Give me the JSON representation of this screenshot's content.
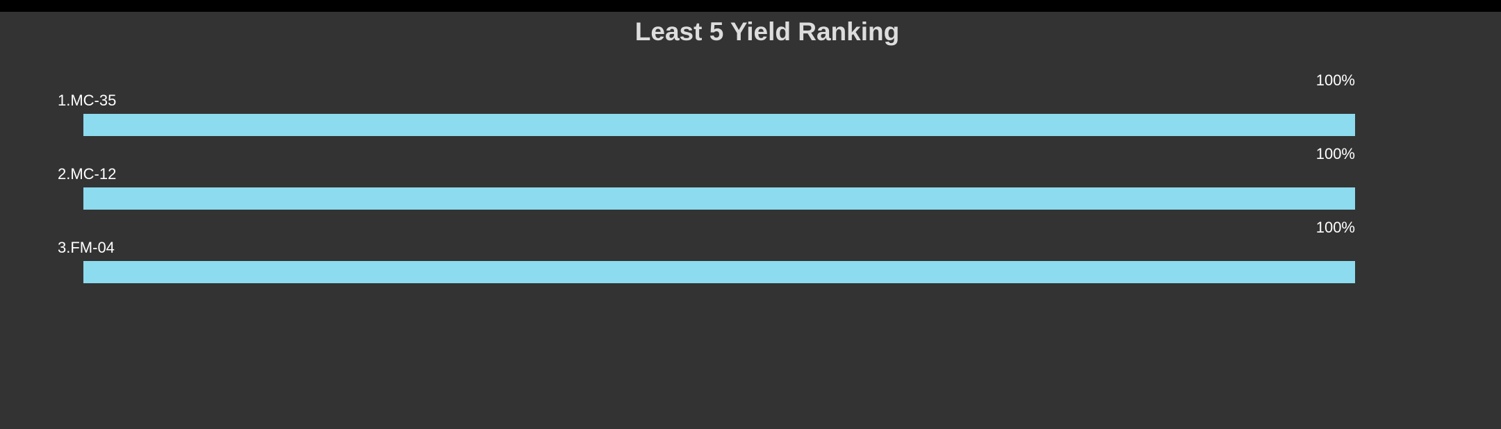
{
  "chart_data": {
    "type": "bar",
    "orientation": "horizontal",
    "title": "Least 5 Yield Ranking",
    "categories": [
      "1.MC-35",
      "2.MC-12",
      "3.FM-04"
    ],
    "values": [
      100,
      100,
      100
    ],
    "value_labels": [
      "100%",
      "100%",
      "100%"
    ],
    "xlim": [
      0,
      100
    ],
    "unit": "%",
    "grid": false,
    "legend": "none",
    "colors": {
      "bar": "#8ddbee",
      "background": "#333333",
      "title": "#dddddd",
      "text": "#ffffff"
    }
  }
}
